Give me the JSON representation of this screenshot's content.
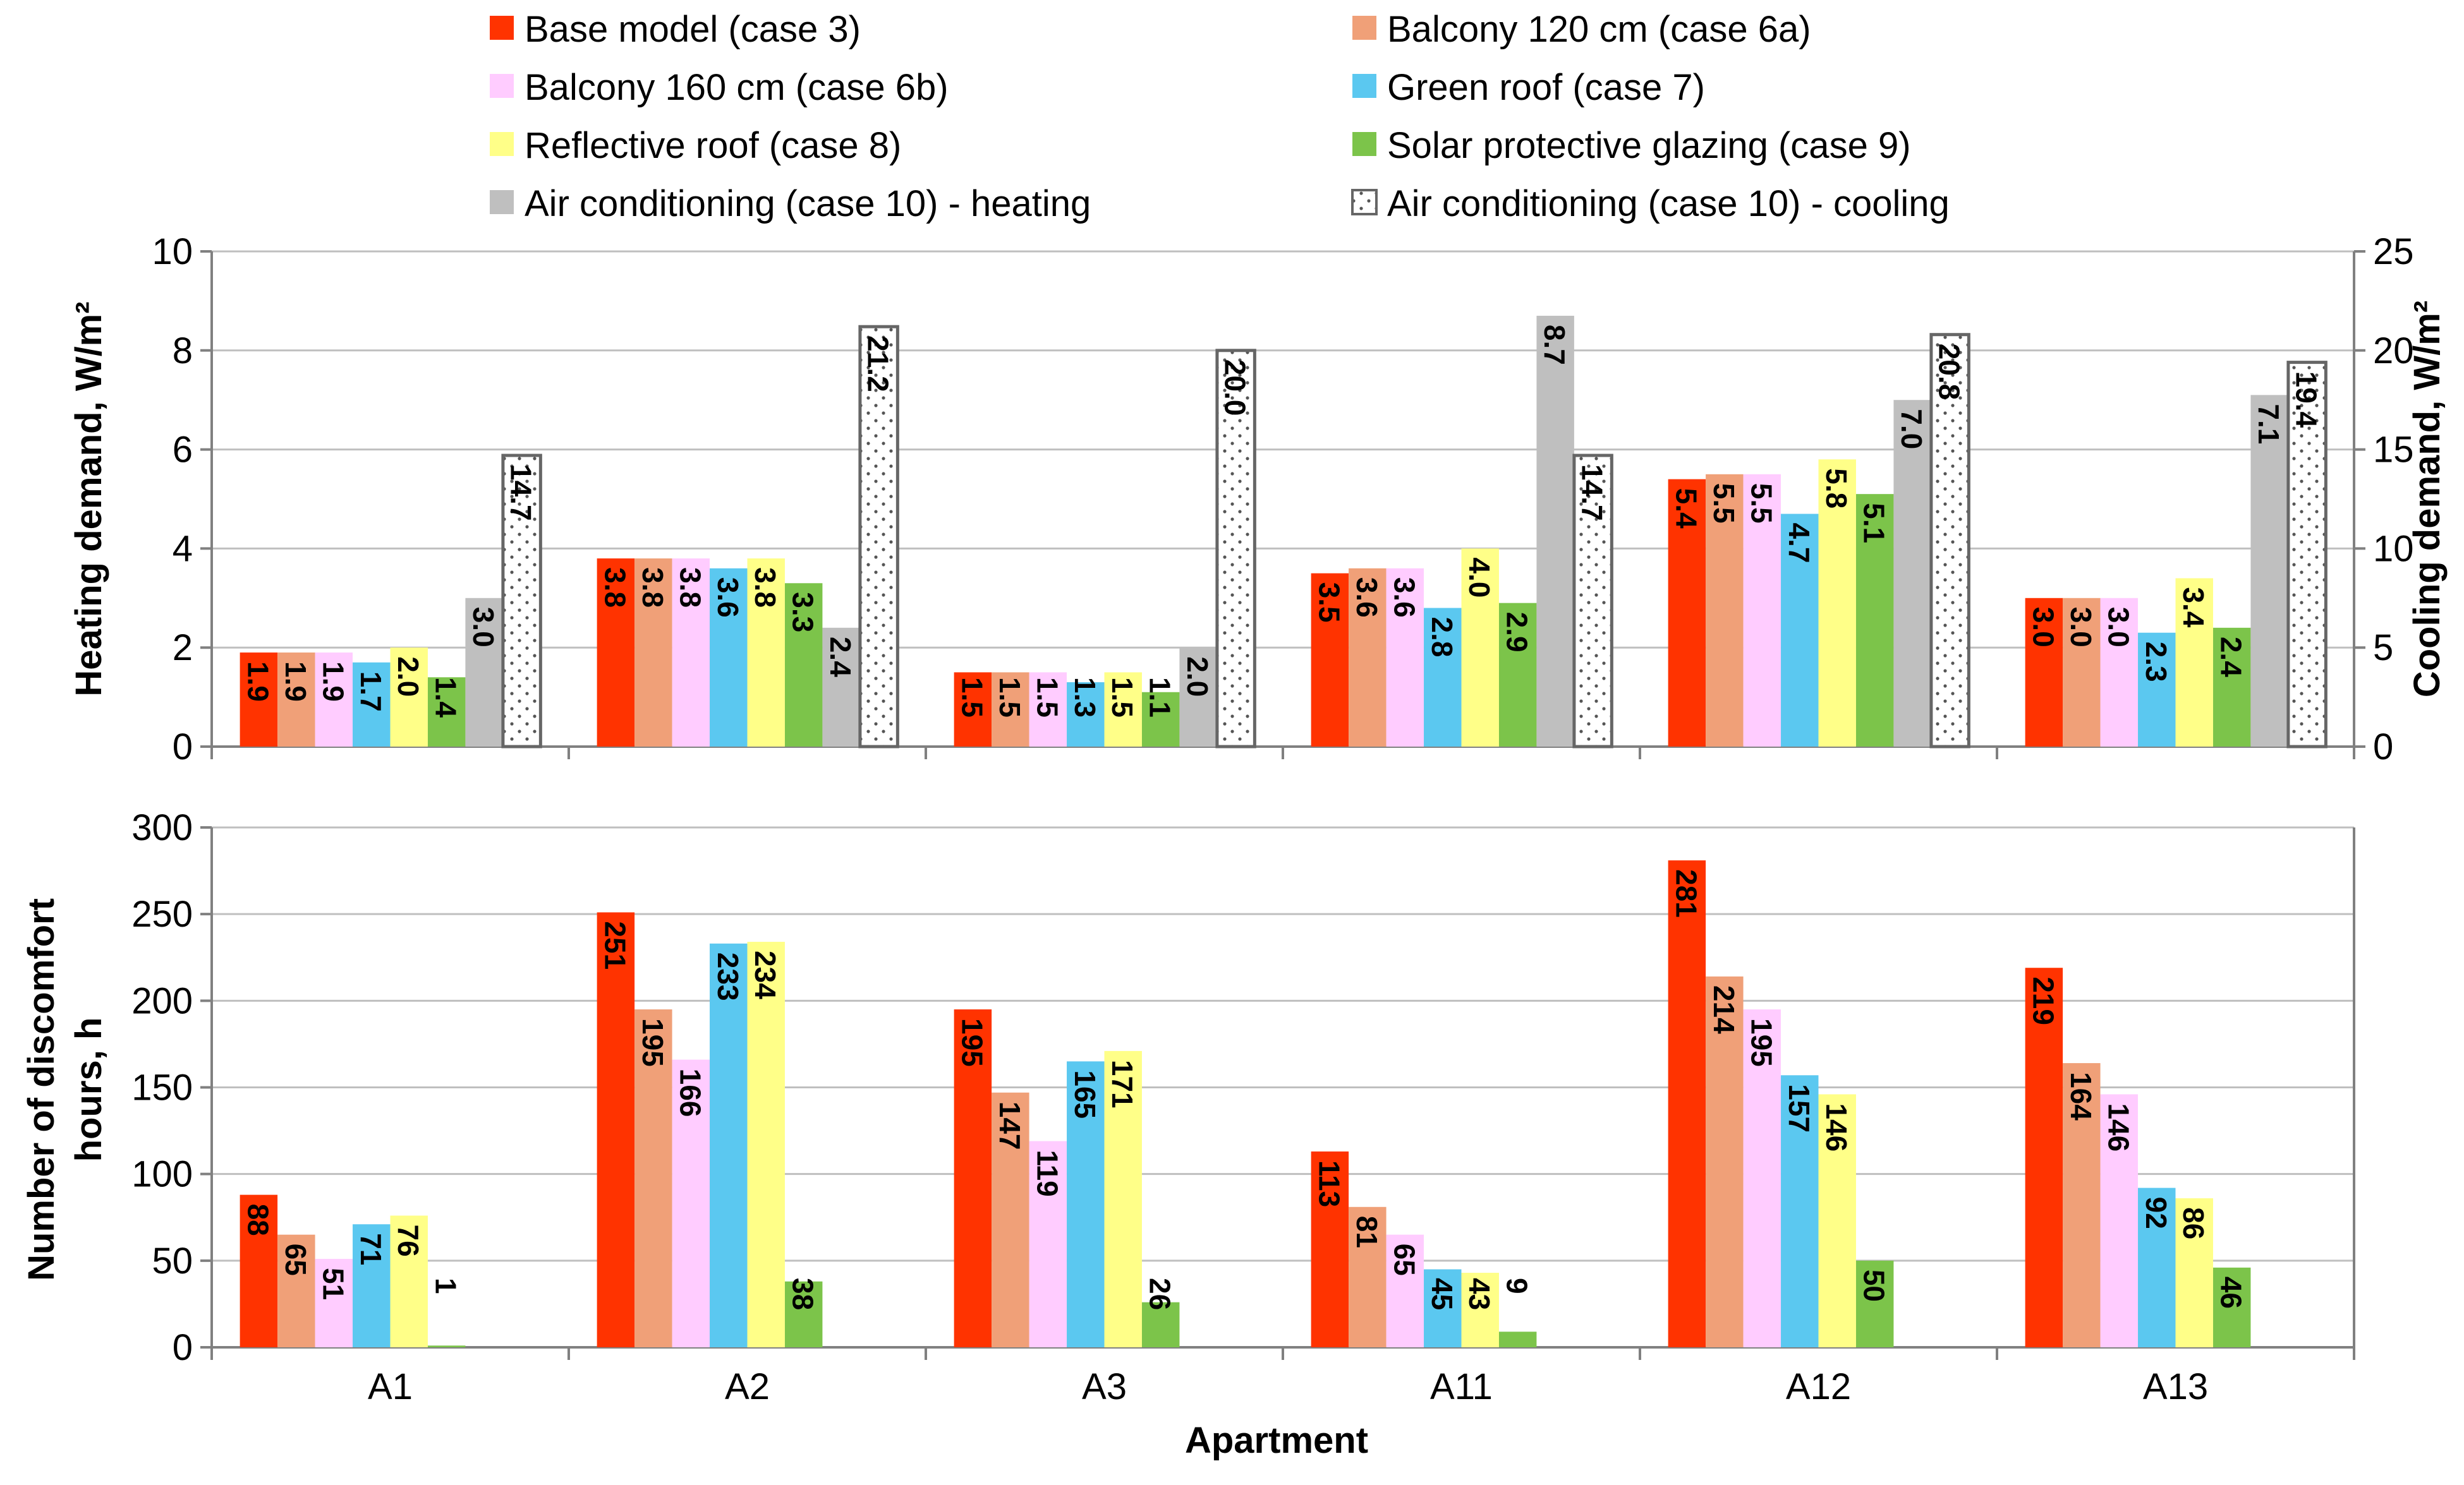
{
  "chart_data": [
    {
      "type": "bar",
      "panel": "top",
      "categories": [
        "A1",
        "A2",
        "A3",
        "A11",
        "A12",
        "A13"
      ],
      "ylabel": "Heating demand, W/m²",
      "y2label": "Cooling demand, W/m²",
      "ylim": [
        0,
        10
      ],
      "y2lim": [
        0,
        25
      ],
      "yticks": [
        0,
        2,
        4,
        6,
        8,
        10
      ],
      "y2ticks": [
        0,
        5,
        10,
        15,
        20,
        25
      ],
      "grid": true,
      "series": [
        {
          "name": "Base model (case 3)",
          "color": "#ff3300",
          "axis": "left",
          "values": [
            1.9,
            3.8,
            1.5,
            3.5,
            5.4,
            3.0
          ]
        },
        {
          "name": "Balcony 120 cm (case 6a)",
          "color": "#f0a078",
          "axis": "left",
          "values": [
            1.9,
            3.8,
            1.5,
            3.6,
            5.5,
            3.0
          ]
        },
        {
          "name": "Balcony 160 cm (case 6b)",
          "color": "#ffccff",
          "axis": "left",
          "values": [
            1.9,
            3.8,
            1.5,
            3.6,
            5.5,
            3.0
          ]
        },
        {
          "name": "Green roof (case 7)",
          "color": "#5bc8f0",
          "axis": "left",
          "values": [
            1.7,
            3.6,
            1.3,
            2.8,
            4.7,
            2.3
          ]
        },
        {
          "name": "Reflective roof (case 8)",
          "color": "#ffff88",
          "axis": "left",
          "values": [
            2.0,
            3.8,
            1.5,
            4.0,
            5.8,
            3.4
          ]
        },
        {
          "name": "Solar protective glazing (case 9)",
          "color": "#7cc44a",
          "axis": "left",
          "values": [
            1.4,
            3.3,
            1.1,
            2.9,
            5.1,
            2.4
          ]
        },
        {
          "name": "Air conditioning (case 10) - heating",
          "color": "#bfbfbf",
          "axis": "left",
          "values": [
            3.0,
            2.4,
            2.0,
            8.7,
            7.0,
            7.1
          ]
        },
        {
          "name": "Air conditioning (case 10) - cooling",
          "color": "#ffffff",
          "pattern": "dotted",
          "axis": "right",
          "values": [
            14.7,
            21.2,
            20.0,
            14.7,
            20.8,
            19.4
          ]
        }
      ],
      "value_labels": [
        [
          "1.9",
          "1.9",
          "1.9",
          "1.7",
          "2.0",
          "1.4",
          "3.0",
          "14.7"
        ],
        [
          "3.8",
          "3.8",
          "3.8",
          "3.6",
          "3.8",
          "3.3",
          "2.4",
          "21.2"
        ],
        [
          "1.5",
          "1.5",
          "1.5",
          "1.3",
          "1.5",
          "1.1",
          "2.0",
          "20.0"
        ],
        [
          "3.5",
          "3.6",
          "3.6",
          "2.8",
          "4.0",
          "2.9",
          "8.7",
          "14.7"
        ],
        [
          "5.4",
          "5.5",
          "5.5",
          "4.7",
          "5.8",
          "5.1",
          "7.0",
          "20.8"
        ],
        [
          "3.0",
          "3.0",
          "3.0",
          "2.3",
          "3.4",
          "2.4",
          "7.1",
          "19.4"
        ]
      ],
      "ytick_labels": [
        "0",
        "2",
        "4",
        "6",
        "8",
        "10"
      ],
      "y2tick_labels": [
        "0",
        "5",
        "10",
        "15",
        "20",
        "25"
      ]
    },
    {
      "type": "bar",
      "panel": "bottom",
      "categories": [
        "A1",
        "A2",
        "A3",
        "A11",
        "A12",
        "A13"
      ],
      "xlabel": "Apartment",
      "ylabel": "Number of discomfort hours, h",
      "ylabel_lines": [
        "Number of discomfort",
        "hours, h"
      ],
      "ylim": [
        0,
        300
      ],
      "yticks": [
        0,
        50,
        100,
        150,
        200,
        250,
        300
      ],
      "grid": true,
      "series": [
        {
          "name": "Base model (case 3)",
          "color": "#ff3300",
          "values": [
            88,
            251,
            195,
            113,
            281,
            219
          ]
        },
        {
          "name": "Balcony 120 cm (case 6a)",
          "color": "#f0a078",
          "values": [
            65,
            195,
            147,
            81,
            214,
            164
          ]
        },
        {
          "name": "Balcony 160 cm (case 6b)",
          "color": "#ffccff",
          "values": [
            51,
            166,
            119,
            65,
            195,
            146
          ]
        },
        {
          "name": "Green roof (case 7)",
          "color": "#5bc8f0",
          "values": [
            71,
            233,
            165,
            45,
            157,
            92
          ]
        },
        {
          "name": "Reflective roof (case 8)",
          "color": "#ffff88",
          "values": [
            76,
            234,
            171,
            43,
            146,
            86
          ]
        },
        {
          "name": "Solar protective glazing (case 9)",
          "color": "#7cc44a",
          "values": [
            1,
            38,
            26,
            9,
            50,
            46
          ]
        }
      ],
      "value_labels": [
        [
          "88",
          "65",
          "51",
          "71",
          "76",
          "1"
        ],
        [
          "251",
          "195",
          "166",
          "233",
          "234",
          "38"
        ],
        [
          "195",
          "147",
          "119",
          "165",
          "171",
          "26"
        ],
        [
          "113",
          "81",
          "65",
          "45",
          "43",
          "9"
        ],
        [
          "281",
          "214",
          "195",
          "157",
          "146",
          "50"
        ],
        [
          "219",
          "164",
          "146",
          "92",
          "86",
          "46"
        ]
      ],
      "ytick_labels": [
        "0",
        "50",
        "100",
        "150",
        "200",
        "250",
        "300"
      ]
    }
  ],
  "legend": {
    "placement": "top",
    "entries": [
      {
        "label": "Base model (case 3)",
        "color": "#ff3300"
      },
      {
        "label": "Balcony 120 cm (case 6a)",
        "color": "#f0a078"
      },
      {
        "label": "Balcony 160 cm (case 6b)",
        "color": "#ffccff"
      },
      {
        "label": "Green roof (case 7)",
        "color": "#5bc8f0"
      },
      {
        "label": "Reflective roof (case 8)",
        "color": "#ffff88"
      },
      {
        "label": "Solar protective glazing (case 9)",
        "color": "#7cc44a"
      },
      {
        "label": "Air conditioning (case 10) - heating",
        "color": "#bfbfbf"
      },
      {
        "label": "Air conditioning (case 10) - cooling",
        "color": "#ffffff",
        "pattern": "dotted"
      }
    ]
  }
}
